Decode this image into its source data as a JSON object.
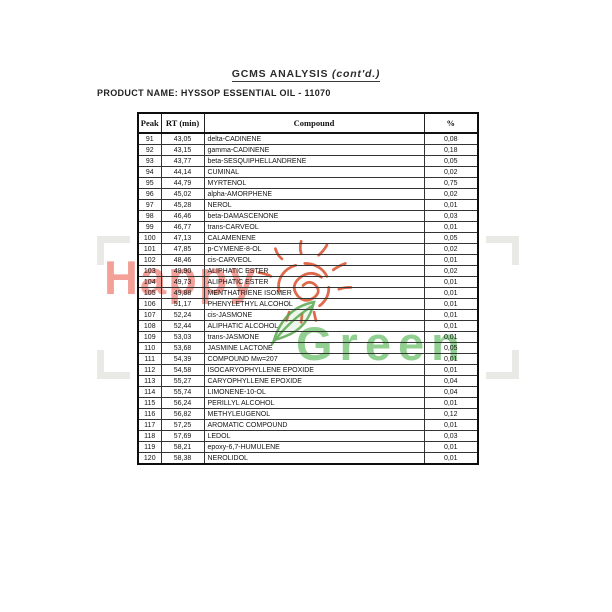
{
  "page": {
    "title_main": "GCMS ANALYSIS",
    "title_suffix": "(cont'd.)",
    "product_line": "PRODUCT NAME: HYSSOP ESSENTIAL OIL - 11070"
  },
  "table": {
    "columns": [
      "Peak",
      "RT (min)",
      "Compound",
      "%"
    ],
    "rows": [
      {
        "peak": "91",
        "rt": "43,05",
        "compound": "delta-CADINENE",
        "pct": "0,08"
      },
      {
        "peak": "92",
        "rt": "43,15",
        "compound": "gamma-CADINENE",
        "pct": "0,18"
      },
      {
        "peak": "93",
        "rt": "43,77",
        "compound": "beta-SESQUIPHELLANDRENE",
        "pct": "0,05"
      },
      {
        "peak": "94",
        "rt": "44,14",
        "compound": "CUMINAL",
        "pct": "0,02"
      },
      {
        "peak": "95",
        "rt": "44,79",
        "compound": "MYRTENOL",
        "pct": "0,75"
      },
      {
        "peak": "96",
        "rt": "45,02",
        "compound": "alpha-AMORPHENE",
        "pct": "0,02"
      },
      {
        "peak": "97",
        "rt": "45,28",
        "compound": "NEROL",
        "pct": "0,01"
      },
      {
        "peak": "98",
        "rt": "46,46",
        "compound": "beta-DAMASCENONE",
        "pct": "0,03"
      },
      {
        "peak": "99",
        "rt": "46,77",
        "compound": "trans-CARVEOL",
        "pct": "0,01"
      },
      {
        "peak": "100",
        "rt": "47,13",
        "compound": "CALAMENENE",
        "pct": "0,05"
      },
      {
        "peak": "101",
        "rt": "47,85",
        "compound": "p-CYMENE-8-OL",
        "pct": "0,02"
      },
      {
        "peak": "102",
        "rt": "48,46",
        "compound": "cis-CARVEOL",
        "pct": "0,01"
      },
      {
        "peak": "103",
        "rt": "48,90",
        "compound": "ALIPHATIC ESTER",
        "pct": "0,02"
      },
      {
        "peak": "104",
        "rt": "49,73",
        "compound": "ALIPHATIC ESTER",
        "pct": "0,01"
      },
      {
        "peak": "105",
        "rt": "49,88",
        "compound": "MENTHATRIENE ISOMER",
        "pct": "0,01"
      },
      {
        "peak": "106",
        "rt": "51,17",
        "compound": "PHENYLETHYL ALCOHOL",
        "pct": "0,01"
      },
      {
        "peak": "107",
        "rt": "52,24",
        "compound": "cis-JASMONE",
        "pct": "0,01"
      },
      {
        "peak": "108",
        "rt": "52,44",
        "compound": "ALIPHATIC ALCOHOL",
        "pct": "0,01"
      },
      {
        "peak": "109",
        "rt": "53,03",
        "compound": "trans-JASMONE",
        "pct": "0,01"
      },
      {
        "peak": "110",
        "rt": "53,68",
        "compound": "JASMINE LACTONE",
        "pct": "0,05"
      },
      {
        "peak": "111",
        "rt": "54,39",
        "compound": "COMPOUND Mw=207",
        "pct": "0,01"
      },
      {
        "peak": "112",
        "rt": "54,58",
        "compound": "ISOCARYOPHYLLENE EPOXIDE",
        "pct": "0,01"
      },
      {
        "peak": "113",
        "rt": "55,27",
        "compound": "CARYOPHYLLENE EPOXIDE",
        "pct": "0,04"
      },
      {
        "peak": "114",
        "rt": "55,74",
        "compound": "LIMONENE-10-OL",
        "pct": "0,04"
      },
      {
        "peak": "115",
        "rt": "56,24",
        "compound": "PERILLYL ALCOHOL",
        "pct": "0,01"
      },
      {
        "peak": "116",
        "rt": "56,82",
        "compound": "METHYLEUGENOL",
        "pct": "0,12"
      },
      {
        "peak": "117",
        "rt": "57,25",
        "compound": "AROMATIC COMPOUND",
        "pct": "0,01"
      },
      {
        "peak": "118",
        "rt": "57,69",
        "compound": "LEDOL",
        "pct": "0,03"
      },
      {
        "peak": "119",
        "rt": "58,21",
        "compound": "epoxy-6,7-HUMULENE",
        "pct": "0,01"
      },
      {
        "peak": "120",
        "rt": "58,38",
        "compound": "NEROLIDOL",
        "pct": "0,01"
      }
    ]
  },
  "watermark": {
    "word_top": "Happy",
    "word_bottom": "Green",
    "colors": {
      "word_top": "#ef8276",
      "word_bottom": "#74c374",
      "sun": "#d9512c",
      "leaf": "#5aa84f",
      "brackets": "#e9e9e5"
    }
  }
}
